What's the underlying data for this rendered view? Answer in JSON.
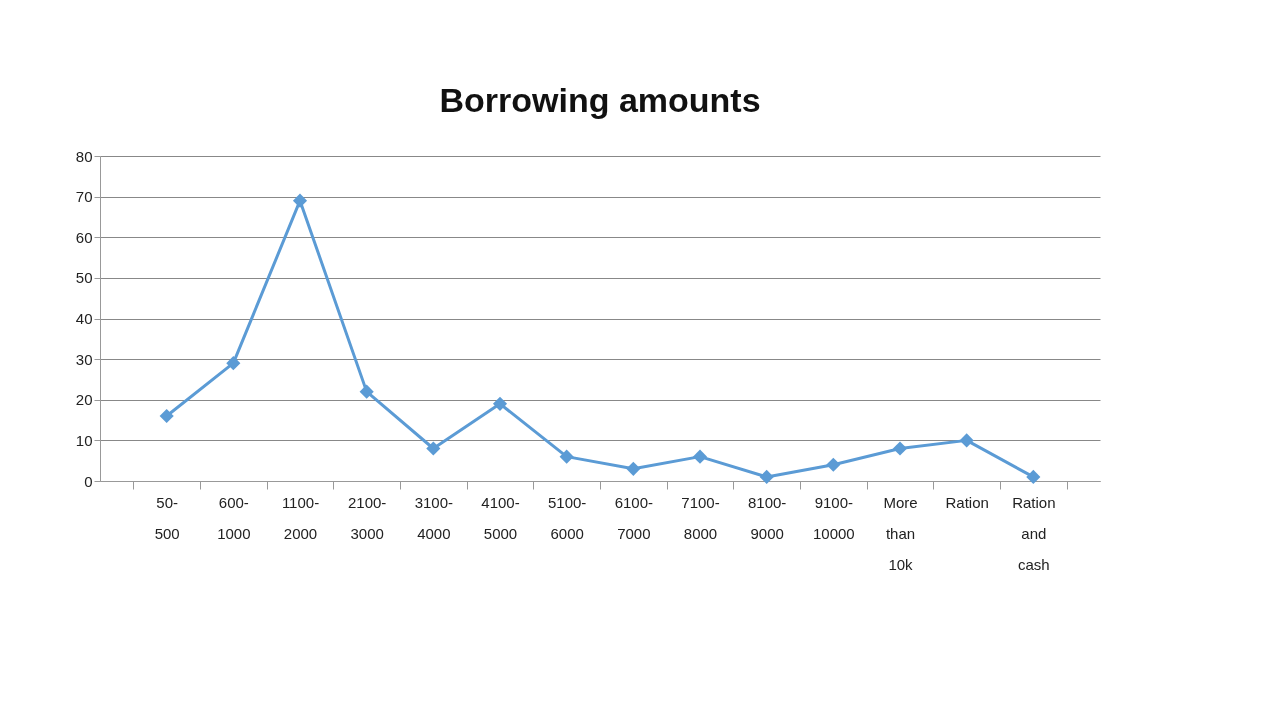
{
  "chart_data": {
    "type": "line",
    "title": "Borrowing amounts",
    "categories": [
      "50-500",
      "600-1000",
      "1100-2000",
      "2100-3000",
      "3100-4000",
      "4100-5000",
      "5100-6000",
      "6100-7000",
      "7100-8000",
      "8100-9000",
      "9100-10000",
      "More than 10k",
      "Ration",
      "Ration and cash"
    ],
    "series": [
      {
        "color": "#5b9bd5",
        "values": [
          16,
          29,
          69,
          22,
          8,
          19,
          6,
          3,
          6,
          1,
          4,
          8,
          10,
          1
        ]
      }
    ],
    "ylim": [
      0,
      80
    ],
    "yticks": [
      0,
      10,
      20,
      30,
      40,
      50,
      60,
      70,
      80
    ],
    "grid": "y",
    "legend": false,
    "marker": "diamond",
    "line_style": "solid"
  }
}
